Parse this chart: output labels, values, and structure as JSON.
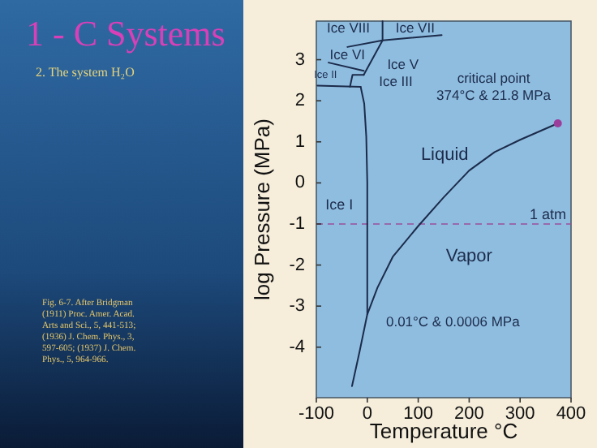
{
  "chart_data": {
    "type": "line",
    "title": "1 - C Systems",
    "subtitle": "2. The system H₂O",
    "xlabel": "Temperature °C",
    "ylabel": "log Pressure (MPa)",
    "xlim": [
      -100,
      400
    ],
    "ylim": [
      -5.23,
      3.94
    ],
    "xticks": [
      -100,
      0,
      100,
      200,
      300,
      400
    ],
    "yticks": [
      -4,
      -3,
      -2,
      -1,
      0,
      1,
      2,
      3
    ],
    "grid": false,
    "series": [
      {
        "color": "#1c2b4a",
        "x": [
          -30,
          -15,
          0,
          20,
          50,
          100,
          150,
          200,
          250,
          300,
          374
        ],
        "values": [
          -4.95,
          -4.1,
          -3.2,
          -2.55,
          -1.8,
          -1.05,
          -0.35,
          0.3,
          0.75,
          1.05,
          1.45
        ]
      },
      {
        "color": "#1c2b4a",
        "x": [
          0,
          0,
          -2,
          -6,
          -13
        ],
        "values": [
          -3.2,
          0,
          1.13,
          1.93,
          2.34
        ]
      },
      {
        "color": "#1c2b4a",
        "x": [
          -39,
          30,
          146
        ],
        "values": [
          3.31,
          3.47,
          3.6
        ]
      },
      {
        "color": "#1c2b4a",
        "x": [
          30,
          30
        ],
        "values": [
          3.94,
          3.47
        ]
      },
      {
        "color": "#1c2b4a",
        "x": [
          30,
          -7
        ],
        "values": [
          3.47,
          2.63
        ]
      },
      {
        "color": "#1c2b4a",
        "x": [
          -76,
          -7
        ],
        "values": [
          2.93,
          2.73
        ]
      },
      {
        "color": "#1c2b4a",
        "x": [
          -98,
          -13
        ],
        "values": [
          2.37,
          2.34
        ]
      },
      {
        "color": "#1c2b4a",
        "x": [
          -34,
          -29,
          -7
        ],
        "values": [
          2.34,
          2.63,
          2.63
        ]
      },
      {
        "type": "scatter",
        "color": "#9b3d9b",
        "x": [
          374
        ],
        "values": [
          1.45
        ],
        "marker": "circle"
      }
    ],
    "ref_lines": [
      {
        "axis": "y",
        "value": -1,
        "label": "1 atm",
        "color": "#9b4d9b",
        "line_style": "dashed"
      }
    ],
    "annotations": [
      "Ice VIII",
      "Ice VII",
      "Ice VI",
      "Ice V",
      "Ice II",
      "Ice III",
      "critical point",
      "374°C  & 21.8 MPa",
      "Liquid",
      "Ice I",
      "Vapor",
      "0.01°C  & 0.0006 MPa",
      "Fig. 6-7. After Bridgman (1911) Proc. Amer. Acad. Arts and Sci., 5, 441-513; (1936) J. Chem. Phys., 3, 597-605; (1937) J. Chem. Phys., 5, 964-966."
    ]
  }
}
